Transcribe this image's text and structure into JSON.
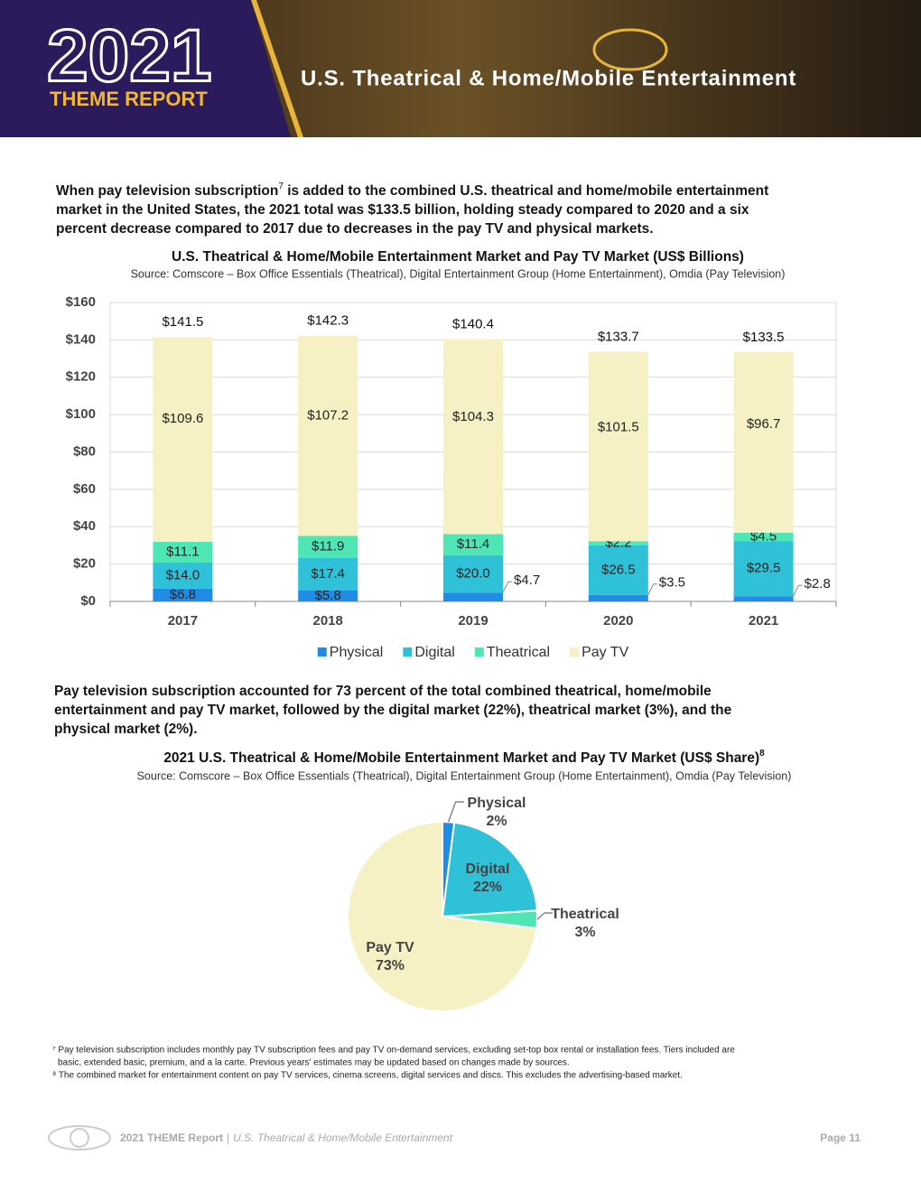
{
  "header": {
    "year": "2021",
    "report": "THEME REPORT",
    "title": "U.S. Theatrical & Home/Mobile Entertainment"
  },
  "intro": {
    "first_line_start": "When pay television subscription",
    "note": "7",
    "first_line_end": " is added to the combined U.S. theatrical and home/mobile entertainment",
    "lines": [
      "market in the United States, the 2021 total was $133.5 billion, holding steady compared to 2020 and a six",
      "percent decrease compared to 2017 due to decreases in the pay TV and physical markets."
    ]
  },
  "chart_data": [
    {
      "type": "bar",
      "stacked": true,
      "title": "U.S. Theatrical & Home/Mobile Entertainment Market and Pay TV Market (US$ Billions)",
      "subtitle": "Source: Comscore – Box Office Essentials (Theatrical), Digital Entertainment Group (Home Entertainment), Omdia (Pay Television)",
      "categories": [
        "2017",
        "2018",
        "2019",
        "2020",
        "2021"
      ],
      "series": [
        {
          "name": "Physical",
          "color": "#1f8ce6",
          "values": [
            6.8,
            5.8,
            4.7,
            3.5,
            2.8
          ],
          "value_labels": [
            "$6.8",
            "$5.8",
            "$4.7",
            "$3.5",
            "$2.8"
          ]
        },
        {
          "name": "Digital",
          "color": "#2fc1d8",
          "values": [
            14.0,
            17.4,
            20.0,
            26.5,
            29.5
          ],
          "value_labels": [
            "$14.0",
            "$17.4",
            "$20.0",
            "$26.5",
            "$29.5"
          ]
        },
        {
          "name": "Theatrical",
          "color": "#4fe6b6",
          "values": [
            11.1,
            11.9,
            11.4,
            2.2,
            4.5
          ],
          "value_labels": [
            "$11.1",
            "$11.9",
            "$11.4",
            "$2.2",
            "$4.5"
          ]
        },
        {
          "name": "Pay TV",
          "color": "#f6f1c4",
          "values": [
            109.6,
            107.2,
            104.3,
            101.5,
            96.7
          ],
          "value_labels": [
            "$109.6",
            "$107.2",
            "$104.3",
            "$101.5",
            "$96.7"
          ]
        }
      ],
      "totals": [
        141.5,
        142.3,
        140.4,
        133.7,
        133.5
      ],
      "total_labels": [
        "$141.5",
        "$142.3",
        "$140.4",
        "$133.7",
        "$133.5"
      ],
      "ylim": [
        0,
        160
      ],
      "yticks": [
        {
          "value": 0,
          "label": "$0"
        },
        {
          "value": 20,
          "label": "$20"
        },
        {
          "value": 40,
          "label": "$40"
        },
        {
          "value": 60,
          "label": "$60"
        },
        {
          "value": 80,
          "label": "$80"
        },
        {
          "value": 100,
          "label": "$100"
        },
        {
          "value": 120,
          "label": "$120"
        },
        {
          "value": 140,
          "label": "$140"
        },
        {
          "value": 160,
          "label": "$160"
        }
      ],
      "grid": true,
      "legend": "bottom"
    },
    {
      "type": "pie",
      "title": "2021 U.S. Theatrical & Home/Mobile Entertainment Market and Pay TV Market (US$ Share)",
      "title_note": "8",
      "subtitle": "Source: Comscore – Box Office Essentials (Theatrical), Digital Entertainment Group (Home Entertainment), Omdia (Pay Television)",
      "categories": [
        "Physical",
        "Digital",
        "Theatrical",
        "Pay TV"
      ],
      "values": [
        2,
        22,
        3,
        73
      ],
      "value_labels": [
        "2%",
        "22%",
        "3%",
        "73%"
      ],
      "colors": [
        "#1f8ce6",
        "#2fc1d8",
        "#4fe6b6",
        "#f6f1c4"
      ]
    }
  ],
  "middle_text": [
    "Pay television subscription accounted for 73 percent of the total combined theatrical, home/mobile",
    "entertainment and pay TV market, followed by the digital market (22%), theatrical market (3%), and the",
    "physical market (2%)."
  ],
  "footnotes": [
    "⁷ Pay television subscription includes monthly pay TV subscription fees and pay TV on-demand services, excluding set-top box rental or installation fees. Tiers included are",
    "basic, extended basic, premium, and a la carte. Previous years' estimates may be updated based on changes made by sources.",
    "⁸ The combined market for entertainment content on pay TV services, cinema screens, digital services and discs. This excludes the advertising-based market."
  ],
  "footer": {
    "report": "2021 THEME Report",
    "separator": "|",
    "section": "U.S. Theatrical & Home/Mobile Entertainment",
    "page": "Page 11"
  }
}
